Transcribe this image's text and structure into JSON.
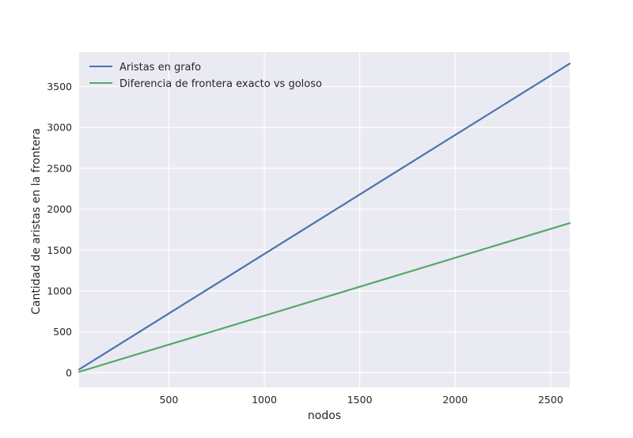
{
  "chart_data": {
    "type": "line",
    "title": "",
    "xlabel": "nodos",
    "ylabel": "Cantidad de aristas en la frontera",
    "xlim": [
      30,
      2600
    ],
    "ylim": [
      -180,
      3920
    ],
    "xticks": [
      500,
      1000,
      1500,
      2000,
      2500
    ],
    "xtick_labels": [
      "500",
      "1000",
      "1500",
      "2000",
      "2500"
    ],
    "yticks": [
      0,
      500,
      1000,
      1500,
      2000,
      2500,
      3000,
      3500
    ],
    "ytick_labels": [
      "0",
      "500",
      "1000",
      "1500",
      "2000",
      "2500",
      "3000",
      "3500"
    ],
    "grid": true,
    "legend_position": "upper-left",
    "series": [
      {
        "name": "Aristas en grafo",
        "color": "#4c72b0",
        "x": [
          30,
          2600
        ],
        "y": [
          40,
          3780
        ]
      },
      {
        "name": "Diferencia de frontera exacto vs goloso",
        "color": "#55a868",
        "x": [
          30,
          2600
        ],
        "y": [
          10,
          1830
        ]
      }
    ],
    "colors": {
      "plot_background": "#eaeaf2",
      "grid": "#ffffff",
      "text": "#262626"
    }
  }
}
